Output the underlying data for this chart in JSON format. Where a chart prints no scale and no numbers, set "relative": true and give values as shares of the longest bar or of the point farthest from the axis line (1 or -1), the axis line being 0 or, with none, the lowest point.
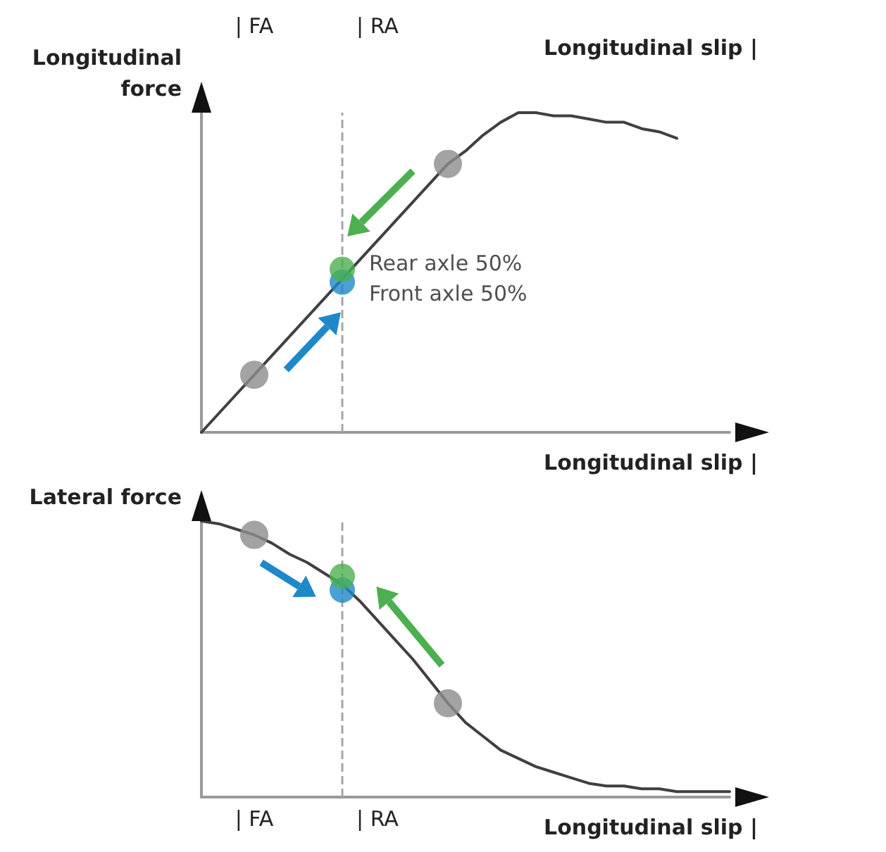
{
  "chart_data": [
    {
      "type": "line",
      "relative": true,
      "ylabel": "Longitudinal force",
      "xlabel": "Longitudinal slip |",
      "x2label": "Longitudinal slip |",
      "tick_labels": "x2",
      "categories": [
        null,
        null,
        null,
        "| FA",
        null,
        null,
        null,
        null,
        null,
        null,
        "| RA",
        null,
        null,
        null,
        null,
        null,
        null,
        null,
        null,
        null,
        null,
        null,
        null,
        null,
        null,
        null,
        null,
        null,
        null,
        null,
        null
      ],
      "series": [
        {
          "type": "line",
          "color": "#404040",
          "marker": "none",
          "values": [
            0,
            0.06,
            0.12,
            0.18,
            0.24,
            0.3,
            0.36,
            0.42,
            0.48,
            0.54,
            0.6,
            0.66,
            0.72,
            0.78,
            0.84,
            0.88,
            0.93,
            0.97,
            1,
            1,
            0.99,
            0.99,
            0.98,
            0.97,
            0.97,
            0.95,
            0.94,
            0.92,
            null,
            null,
            null
          ]
        },
        {
          "type": "scatter",
          "color": "#8c8c8c",
          "marker": "circle",
          "values": [
            null,
            null,
            null,
            0.18,
            null,
            null,
            null,
            null,
            null,
            null,
            null,
            null,
            null,
            null,
            0.84,
            null,
            null,
            null,
            null,
            null,
            null,
            null,
            null,
            null,
            null,
            null,
            null,
            null,
            null,
            null,
            null
          ]
        },
        {
          "type": "scatter",
          "name": "Front axle 50%",
          "color": "#1e88c8",
          "marker": "circle",
          "values": [
            null,
            null,
            null,
            null,
            null,
            null,
            null,
            null,
            0.47,
            null,
            null,
            null,
            null,
            null,
            null,
            null,
            null,
            null,
            null,
            null,
            null,
            null,
            null,
            null,
            null,
            null,
            null,
            null,
            null,
            null,
            null
          ]
        },
        {
          "type": "scatter",
          "name": "Rear axle 50%",
          "color": "#4caf50",
          "marker": "circle",
          "values": [
            null,
            null,
            null,
            null,
            null,
            null,
            null,
            null,
            0.51,
            null,
            null,
            null,
            null,
            null,
            null,
            null,
            null,
            null,
            null,
            null,
            null,
            null,
            null,
            null,
            null,
            null,
            null,
            null,
            null,
            null,
            null
          ]
        }
      ]
    },
    {
      "type": "line",
      "relative": true,
      "ylabel": "Lateral force",
      "xlabel": "Longitudinal slip |",
      "tick_labels": "x",
      "categories": [
        null,
        null,
        null,
        "| FA",
        null,
        null,
        null,
        null,
        null,
        null,
        "| RA",
        null,
        null,
        null,
        null,
        null,
        null,
        null,
        null,
        null,
        null,
        null,
        null,
        null,
        null,
        null,
        null,
        null,
        null,
        null,
        null
      ],
      "series": [
        {
          "type": "line",
          "color": "#404040",
          "marker": "none",
          "values": [
            1,
            0.99,
            0.97,
            0.95,
            0.92,
            0.88,
            0.85,
            0.81,
            0.77,
            0.71,
            0.64,
            0.57,
            0.5,
            0.42,
            0.34,
            0.27,
            0.22,
            0.17,
            0.14,
            0.11,
            0.09,
            0.07,
            0.05,
            0.04,
            0.04,
            0.03,
            0.03,
            0.02,
            0.02,
            0.02,
            0.02
          ]
        },
        {
          "type": "scatter",
          "color": "#8c8c8c",
          "marker": "circle",
          "values": [
            null,
            null,
            null,
            0.95,
            null,
            null,
            null,
            null,
            null,
            null,
            null,
            null,
            null,
            null,
            0.34,
            null,
            null,
            null,
            null,
            null,
            null,
            null,
            null,
            null,
            null,
            null,
            null,
            null,
            null,
            null,
            null
          ]
        },
        {
          "type": "scatter",
          "color": "#1e88c8",
          "marker": "circle",
          "values": [
            null,
            null,
            null,
            null,
            null,
            null,
            null,
            null,
            0.75,
            null,
            null,
            null,
            null,
            null,
            null,
            null,
            null,
            null,
            null,
            null,
            null,
            null,
            null,
            null,
            null,
            null,
            null,
            null,
            null,
            null,
            null
          ]
        },
        {
          "type": "scatter",
          "color": "#4caf50",
          "marker": "circle",
          "values": [
            null,
            null,
            null,
            null,
            null,
            null,
            null,
            null,
            0.8,
            null,
            null,
            null,
            null,
            null,
            null,
            null,
            null,
            null,
            null,
            null,
            null,
            null,
            null,
            null,
            null,
            null,
            null,
            null,
            null,
            null,
            null
          ]
        }
      ]
    }
  ]
}
